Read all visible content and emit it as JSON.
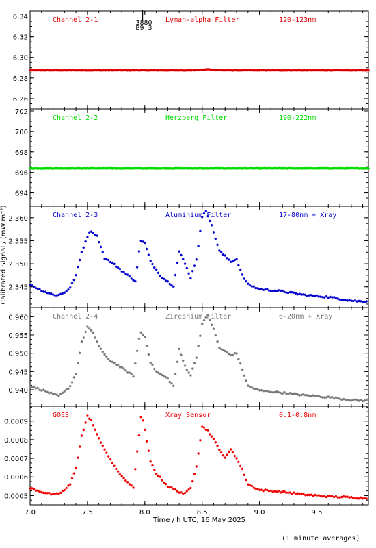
{
  "footer": {
    "note": "(1 minute averages)"
  },
  "chart_data": [
    {
      "type": "scatter",
      "panel": "channel-2-1",
      "labels": {
        "channel": "Channel 2-1",
        "filter": "Lyman-alpha Filter",
        "band": "120-123nm"
      },
      "color": "#dd0000",
      "ylim": [
        6.25,
        6.345
      ],
      "yticks": [
        "6.26",
        "6.28",
        "6.30",
        "6.32",
        "6.34"
      ],
      "annotation": {
        "x": 7.98,
        "lines": [
          "3880",
          "B9.3"
        ]
      },
      "series": [
        {
          "values": [
            [
              7.0,
              6.2875
            ],
            [
              8.4,
              6.2875
            ],
            [
              8.5,
              6.2879
            ],
            [
              8.55,
              6.2885
            ],
            [
              8.6,
              6.2879
            ],
            [
              8.7,
              6.2875
            ],
            [
              9.95,
              6.2875
            ]
          ]
        }
      ]
    },
    {
      "type": "scatter",
      "panel": "channel-2-2",
      "labels": {
        "channel": "Channel 2-2",
        "filter": "Herzberg Filter",
        "band": "190-222nm"
      },
      "color": "#00dd00",
      "ylim": [
        692.7,
        702.2
      ],
      "yticks": [
        "694",
        "696",
        "698",
        "700",
        "702"
      ],
      "series": [
        {
          "values": [
            [
              7.0,
              696.4
            ],
            [
              9.95,
              696.4
            ]
          ]
        }
      ]
    },
    {
      "type": "scatter",
      "panel": "channel-2-3",
      "labels": {
        "channel": "Channel 2-3",
        "filter": "Aluminium Filter",
        "band": "17-80nm + Xray"
      },
      "color": "#0000cc",
      "ylim": [
        2.3405,
        2.3625
      ],
      "yticks": [
        "2.345",
        "2.350",
        "2.355",
        "2.360"
      ],
      "ytick_values": [
        2.345,
        2.35,
        2.355,
        2.36
      ],
      "series": [
        {
          "values": [
            [
              7.0,
              2.3455
            ],
            [
              7.1,
              2.3442
            ],
            [
              7.2,
              2.3433
            ],
            [
              7.25,
              2.3432
            ],
            [
              7.3,
              2.3438
            ],
            [
              7.35,
              2.3448
            ],
            [
              7.4,
              2.3475
            ],
            [
              7.45,
              2.3525
            ],
            [
              7.5,
              2.356
            ],
            [
              7.53,
              2.3572
            ],
            [
              7.58,
              2.3562
            ],
            [
              7.62,
              2.3535
            ],
            [
              7.65,
              2.3512
            ],
            [
              7.7,
              2.3505
            ],
            [
              7.75,
              2.3495
            ],
            [
              7.85,
              2.3475
            ],
            [
              7.92,
              2.3462
            ],
            [
              7.96,
              2.355
            ],
            [
              8.0,
              2.3545
            ],
            [
              8.05,
              2.3505
            ],
            [
              8.15,
              2.347
            ],
            [
              8.25,
              2.3452
            ],
            [
              8.3,
              2.3527
            ],
            [
              8.35,
              2.35
            ],
            [
              8.4,
              2.347
            ],
            [
              8.45,
              2.351
            ],
            [
              8.5,
              2.36
            ],
            [
              8.53,
              2.3618
            ],
            [
              8.58,
              2.3585
            ],
            [
              8.65,
              2.3528
            ],
            [
              8.75,
              2.3505
            ],
            [
              8.8,
              2.351
            ],
            [
              8.85,
              2.3475
            ],
            [
              8.9,
              2.3455
            ],
            [
              9.0,
              2.3445
            ],
            [
              9.2,
              2.344
            ],
            [
              9.4,
              2.3432
            ],
            [
              9.6,
              2.3428
            ],
            [
              9.8,
              2.342
            ],
            [
              9.9,
              2.3418
            ],
            [
              9.95,
              2.342
            ]
          ]
        }
      ]
    },
    {
      "type": "scatter",
      "panel": "channel-2-4",
      "labels": {
        "channel": "Channel 2-4",
        "filter": "Zirconium Filter",
        "band": "6-20nm + Xray"
      },
      "color": "#777777",
      "ylim": [
        0.9355,
        0.9625
      ],
      "yticks": [
        "0.940",
        "0.945",
        "0.950",
        "0.955",
        "0.960"
      ],
      "ytick_values": [
        0.94,
        0.945,
        0.95,
        0.955,
        0.96
      ],
      "series": [
        {
          "values": [
            [
              7.0,
              0.941
            ],
            [
              7.1,
              0.94
            ],
            [
              7.2,
              0.9388
            ],
            [
              7.25,
              0.9383
            ],
            [
              7.3,
              0.9395
            ],
            [
              7.35,
              0.941
            ],
            [
              7.4,
              0.9445
            ],
            [
              7.45,
              0.953
            ],
            [
              7.5,
              0.9572
            ],
            [
              7.55,
              0.9555
            ],
            [
              7.6,
              0.952
            ],
            [
              7.65,
              0.9495
            ],
            [
              7.7,
              0.948
            ],
            [
              7.8,
              0.946
            ],
            [
              7.9,
              0.9438
            ],
            [
              7.96,
              0.956
            ],
            [
              8.0,
              0.9545
            ],
            [
              8.05,
              0.9475
            ],
            [
              8.1,
              0.945
            ],
            [
              8.2,
              0.943
            ],
            [
              8.25,
              0.941
            ],
            [
              8.3,
              0.951
            ],
            [
              8.35,
              0.9465
            ],
            [
              8.4,
              0.944
            ],
            [
              8.45,
              0.949
            ],
            [
              8.5,
              0.958
            ],
            [
              8.55,
              0.9605
            ],
            [
              8.6,
              0.9565
            ],
            [
              8.65,
              0.9515
            ],
            [
              8.75,
              0.9495
            ],
            [
              8.8,
              0.95
            ],
            [
              8.85,
              0.9455
            ],
            [
              8.9,
              0.941
            ],
            [
              9.0,
              0.9398
            ],
            [
              9.2,
              0.9392
            ],
            [
              9.4,
              0.9385
            ],
            [
              9.6,
              0.938
            ],
            [
              9.8,
              0.9372
            ],
            [
              9.95,
              0.937
            ]
          ]
        }
      ]
    },
    {
      "type": "scatter",
      "panel": "goes",
      "labels": {
        "channel": "GOES",
        "filter": "Xray Sensor",
        "band": "0.1-0.8nm"
      },
      "color": "#ee0000",
      "ylim": [
        0.00045,
        0.00098
      ],
      "yticks": [
        "0.0005",
        "0.0006",
        "0.0007",
        "0.0008",
        "0.0009"
      ],
      "ytick_values": [
        0.0005,
        0.0006,
        0.0007,
        0.0008,
        0.0009
      ],
      "series": [
        {
          "values": [
            [
              7.0,
              0.00054
            ],
            [
              7.1,
              0.00052
            ],
            [
              7.2,
              0.000505
            ],
            [
              7.25,
              0.00051
            ],
            [
              7.3,
              0.00053
            ],
            [
              7.35,
              0.00056
            ],
            [
              7.4,
              0.00065
            ],
            [
              7.45,
              0.00082
            ],
            [
              7.5,
              0.000925
            ],
            [
              7.53,
              0.00091
            ],
            [
              7.58,
              0.00083
            ],
            [
              7.65,
              0.00075
            ],
            [
              7.7,
              0.00069
            ],
            [
              7.8,
              0.0006
            ],
            [
              7.9,
              0.000545
            ],
            [
              7.97,
              0.00094
            ],
            [
              8.0,
              0.00085
            ],
            [
              8.05,
              0.00068
            ],
            [
              8.1,
              0.00062
            ],
            [
              8.2,
              0.00055
            ],
            [
              8.3,
              0.00052
            ],
            [
              8.35,
              0.00051
            ],
            [
              8.4,
              0.00054
            ],
            [
              8.45,
              0.00066
            ],
            [
              8.5,
              0.00087
            ],
            [
              8.55,
              0.00085
            ],
            [
              8.6,
              0.0008
            ],
            [
              8.7,
              0.0007
            ],
            [
              8.75,
              0.00075
            ],
            [
              8.8,
              0.0007
            ],
            [
              8.85,
              0.00064
            ],
            [
              8.9,
              0.00056
            ],
            [
              9.0,
              0.00053
            ],
            [
              9.2,
              0.00052
            ],
            [
              9.4,
              0.000505
            ],
            [
              9.6,
              0.000495
            ],
            [
              9.8,
              0.00049
            ],
            [
              9.95,
              0.000485
            ]
          ]
        }
      ]
    }
  ],
  "xaxis": {
    "xlim": [
      7.0,
      9.95
    ],
    "ticks": [
      "7.0",
      "7.5",
      "8.0",
      "8.5",
      "9.0",
      "9.5"
    ],
    "tick_values": [
      7.0,
      7.5,
      8.0,
      8.5,
      9.0,
      9.5
    ],
    "label": "Time / h UTC, 16 May 2025"
  },
  "yaxis": {
    "label": "Calibrated Signal / (mW m⁻²)"
  }
}
